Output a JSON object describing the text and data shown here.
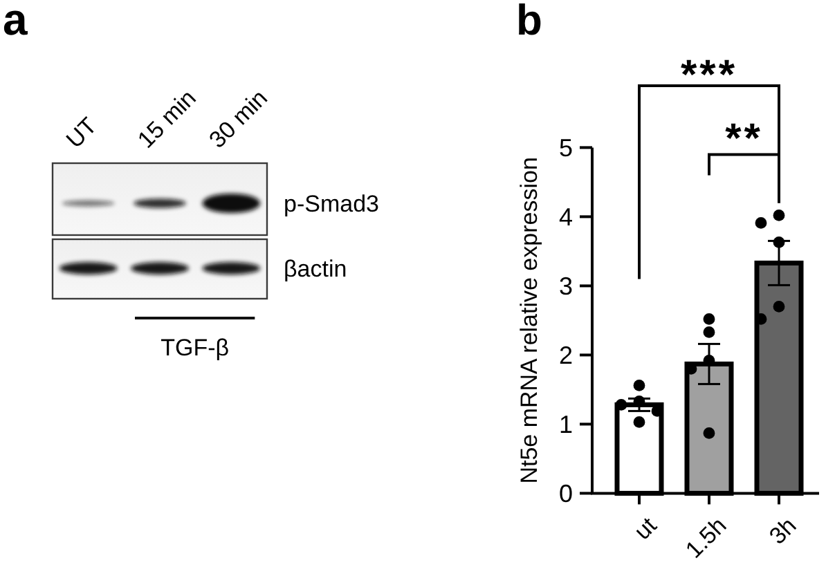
{
  "chart_data": [
    {
      "type": "other",
      "title": "a",
      "categories": [
        "UT",
        "15 min",
        "30 min"
      ],
      "annotations": [
        "p-Smad3",
        "βactin",
        "TGF-β"
      ]
    },
    {
      "type": "bar",
      "title": "b",
      "categories": [
        "ut",
        "1.5h",
        "3h"
      ],
      "ylabel": "Nt5e mRNA relative expression",
      "ylim": [
        0,
        5
      ],
      "yticks": [
        0,
        1,
        2,
        3,
        4,
        5
      ],
      "series": [
        {
          "type": "bar",
          "colors": [
            "#ffffff",
            "#a0a0a0",
            "#646464"
          ],
          "values": [
            1.28,
            1.87,
            3.33
          ],
          "errors": [
            0.09,
            0.29,
            0.32
          ]
        },
        {
          "type": "scatter",
          "color": "#000000",
          "x": [
            "ut",
            "ut",
            "ut",
            "ut",
            "ut",
            "1.5h",
            "1.5h",
            "1.5h",
            "1.5h",
            "1.5h",
            "3h",
            "3h",
            "3h",
            "3h",
            "3h"
          ],
          "values": [
            1.56,
            1.33,
            1.28,
            1.19,
            1.03,
            2.52,
            2.33,
            1.92,
            1.8,
            0.87,
            4.02,
            3.91,
            3.63,
            2.7,
            2.52
          ]
        }
      ],
      "annotations": [
        "***",
        "**"
      ]
    }
  ]
}
